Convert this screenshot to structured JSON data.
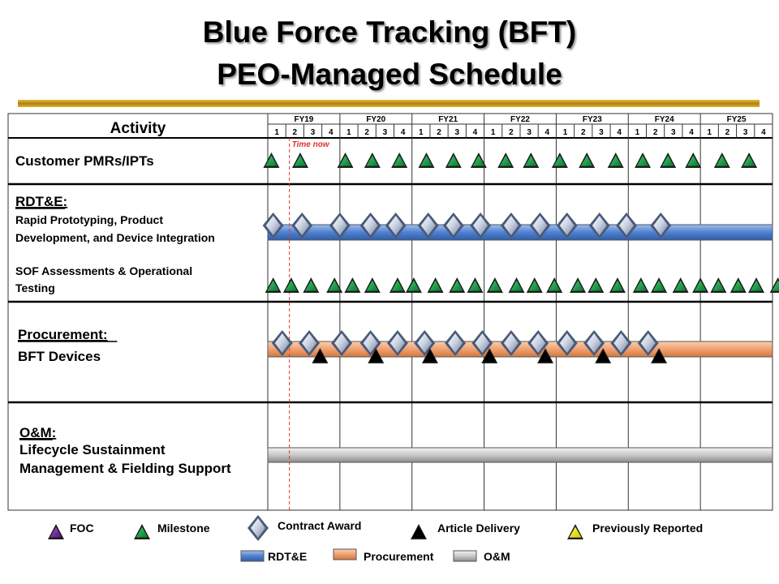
{
  "title_line1": "Blue Force Tracking (BFT)",
  "title_line2": "PEO-Managed Schedule",
  "activity_header": "Activity",
  "time_now_label": "Time now",
  "colors": {
    "rdte_bar": "#4f7fcf",
    "procurement_bar": "#f0a070",
    "om_bar": "#c8c8c8",
    "milestone": "#1e9a4a",
    "article_delivery": "#000000",
    "foc": "#6a2a9a",
    "previously_reported": "#e8e800",
    "time_now": "#e03030",
    "title_rule": "#c8a018"
  },
  "chart_data": {
    "type": "gantt",
    "fiscal_years": [
      "FY19",
      "FY20",
      "FY21",
      "FY22",
      "FY23",
      "FY24",
      "FY25"
    ],
    "quarters": [
      "1",
      "2",
      "3",
      "4"
    ],
    "time_now": 1.2,
    "rows": [
      {
        "id": "pmr",
        "labels": [
          {
            "text": "Customer PMRs/IPTs",
            "underline": false
          }
        ],
        "bars": [],
        "tracks": [
          {
            "type": "milestone",
            "q": [
              0.2,
              1.8,
              4.3,
              5.8,
              7.3,
              8.8,
              10.3,
              11.7,
              13.2,
              14.6,
              16.2,
              17.7,
              19.3,
              20.8,
              22.2,
              23.6,
              25.2,
              26.7
            ]
          }
        ]
      },
      {
        "id": "rdte",
        "labels": [
          {
            "text": "RDT&E:",
            "underline": true
          },
          {
            "text": "Rapid Prototyping,  Product",
            "underline": false
          },
          {
            "text": "Development,  and Device Integration",
            "underline": false
          },
          {
            "text": "SOF Assessments  & Operational",
            "underline": false
          },
          {
            "text": "Testing",
            "underline": false
          }
        ],
        "bars": [
          {
            "kind": "rdte",
            "start": 0,
            "end": 28
          }
        ],
        "tracks": [
          {
            "type": "contract_award",
            "q": [
              0.3,
              1.9,
              4.0,
              5.7,
              7.1,
              8.9,
              10.3,
              11.8,
              13.5,
              15.1,
              16.6,
              18.4,
              19.9,
              21.8
            ]
          },
          {
            "type": "milestone",
            "q": [
              0.3,
              1.3,
              2.4,
              3.7,
              4.7,
              5.8,
              7.2,
              8.1,
              9.3,
              10.5,
              11.5,
              12.6,
              13.8,
              14.8,
              15.9,
              17.2,
              18.2,
              19.4,
              20.7,
              21.7,
              22.9,
              24.0,
              25.0,
              26.1,
              27.1,
              28.3
            ]
          }
        ]
      },
      {
        "id": "procurement",
        "labels": [
          {
            "text": "Procurement:",
            "underline": true
          },
          {
            "text": "BFT Devices",
            "underline": false
          }
        ],
        "bars": [
          {
            "kind": "procurement",
            "start": 0,
            "end": 28
          }
        ],
        "tracks": [
          {
            "type": "contract_award",
            "q": [
              0.8,
              2.3,
              4.1,
              5.7,
              7.2,
              8.7,
              10.4,
              11.9,
              13.5,
              15.0,
              16.6,
              18.1,
              19.6,
              21.1
            ]
          },
          {
            "type": "article_delivery",
            "q": [
              2.9,
              6.0,
              9.0,
              12.3,
              15.4,
              18.6,
              21.7
            ]
          }
        ]
      },
      {
        "id": "om",
        "labels": [
          {
            "text": "O&M:",
            "underline": true
          },
          {
            "text": "Lifecycle Sustainment",
            "underline": false
          },
          {
            "text": "Management & Fielding Support",
            "underline": false
          }
        ],
        "bars": [
          {
            "kind": "om",
            "start": 0,
            "end": 28
          }
        ],
        "tracks": []
      }
    ]
  },
  "legend": {
    "foc": "FOC",
    "milestone": "Milestone",
    "contract_award": "Contract Award",
    "article_delivery": "Article Delivery",
    "previously_reported": "Previously Reported",
    "rdte": "RDT&E",
    "procurement": "Procurement",
    "om": "O&M"
  }
}
